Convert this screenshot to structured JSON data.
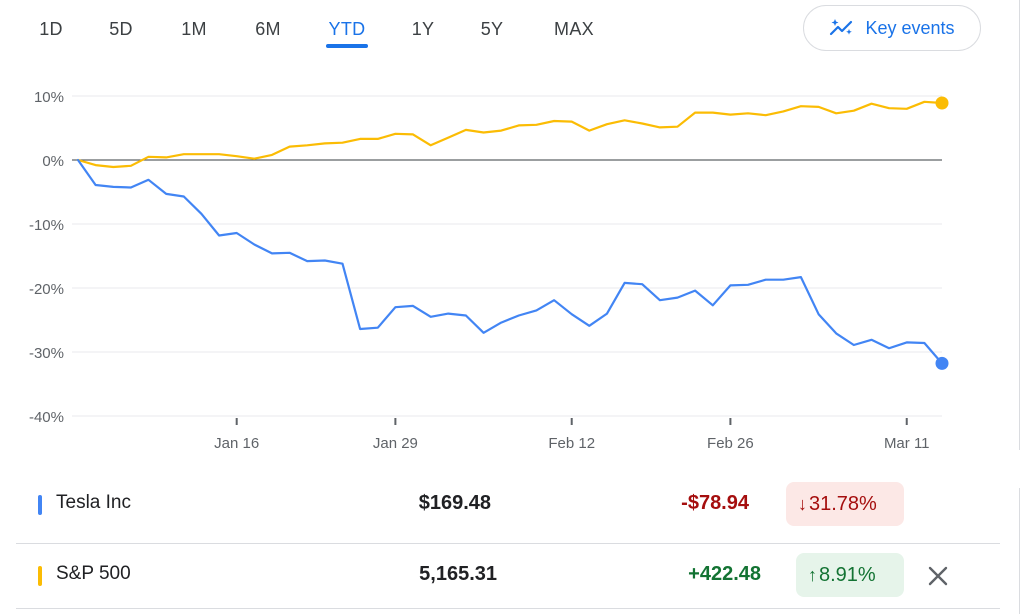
{
  "tabs": [
    {
      "label": "1D",
      "active": false
    },
    {
      "label": "5D",
      "active": false
    },
    {
      "label": "1M",
      "active": false
    },
    {
      "label": "6M",
      "active": false
    },
    {
      "label": "YTD",
      "active": true
    },
    {
      "label": "1Y",
      "active": false
    },
    {
      "label": "5Y",
      "active": false
    },
    {
      "label": "MAX",
      "active": false
    }
  ],
  "key_events": {
    "label": "Key events",
    "icon": "sparkle-chart-icon"
  },
  "colors": {
    "tesla": "#4285f4",
    "sp500": "#fbbc04",
    "accent": "#1a73e8",
    "negative": "#a50e0e",
    "positive": "#137333"
  },
  "chart_data": {
    "type": "line",
    "title": "",
    "xlabel": "",
    "ylabel": "",
    "x_ticks": [
      "Jan 16",
      "Jan 29",
      "Feb 12",
      "Feb 26",
      "Mar 11"
    ],
    "x_tick_index": [
      9,
      18,
      28,
      37,
      47
    ],
    "y_ticks": [
      "10%",
      "0%",
      "-10%",
      "-20%",
      "-30%",
      "-40%"
    ],
    "ylim": [
      -40,
      10
    ],
    "grid": true,
    "baseline": 0,
    "series": [
      {
        "name": "Tesla Inc",
        "color": "#4285f4",
        "values": [
          0,
          -3.9,
          -4.2,
          -4.3,
          -3.1,
          -5.3,
          -5.7,
          -8.4,
          -11.8,
          -11.4,
          -13.2,
          -14.6,
          -14.5,
          -15.8,
          -15.7,
          -16.2,
          -26.4,
          -26.2,
          -23.0,
          -22.8,
          -24.5,
          -24.0,
          -24.3,
          -27.0,
          -25.4,
          -24.3,
          -23.5,
          -21.9,
          -24.1,
          -25.9,
          -24.0,
          -19.2,
          -19.4,
          -21.9,
          -21.5,
          -20.4,
          -22.7,
          -19.6,
          -19.5,
          -18.7,
          -18.7,
          -18.3,
          -24.1,
          -27.1,
          -28.9,
          -28.1,
          -29.4,
          -28.5,
          -28.6,
          -31.78
        ]
      },
      {
        "name": "S&P 500",
        "color": "#fbbc04",
        "values": [
          0,
          -0.8,
          -1.1,
          -0.9,
          0.5,
          0.4,
          0.9,
          0.9,
          0.9,
          0.6,
          0.2,
          0.8,
          2.1,
          2.3,
          2.6,
          2.7,
          3.3,
          3.3,
          4.1,
          4.0,
          2.3,
          3.5,
          4.7,
          4.3,
          4.6,
          5.4,
          5.5,
          6.1,
          6.0,
          4.6,
          5.6,
          6.2,
          5.7,
          5.1,
          5.2,
          7.4,
          7.4,
          7.1,
          7.3,
          7.0,
          7.6,
          8.4,
          8.3,
          7.3,
          7.7,
          8.8,
          8.1,
          8.0,
          9.1,
          8.91
        ]
      }
    ]
  },
  "securities": [
    {
      "name": "Tesla Inc",
      "price": "$169.48",
      "change": "-$78.94",
      "percent": "31.78%",
      "direction": "down",
      "arrow": "↓"
    },
    {
      "name": "S&P 500",
      "price": "5,165.31",
      "change": "+422.48",
      "percent": "8.91%",
      "direction": "up",
      "arrow": "↑"
    }
  ]
}
